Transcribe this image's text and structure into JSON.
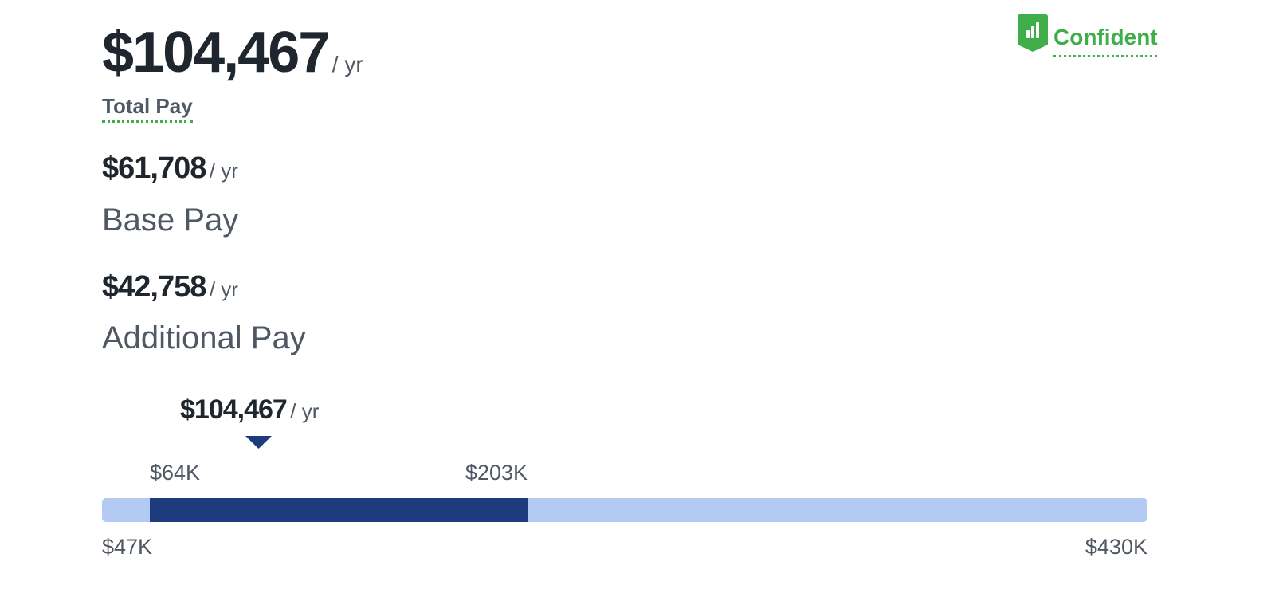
{
  "confidence": "Confident",
  "total_pay": {
    "amount": "$104,467",
    "period": "/ yr",
    "label": "Total Pay"
  },
  "base_pay": {
    "amount": "$61,708",
    "period": "/ yr",
    "label": "Base Pay"
  },
  "additional_pay": {
    "amount": "$42,758",
    "period": "/ yr",
    "label": "Additional Pay"
  },
  "range": {
    "marker": {
      "amount": "$104,467",
      "period": "/ yr"
    },
    "low_likely": "$64K",
    "high_likely": "$203K",
    "min": "$47K",
    "max": "$430K"
  }
}
